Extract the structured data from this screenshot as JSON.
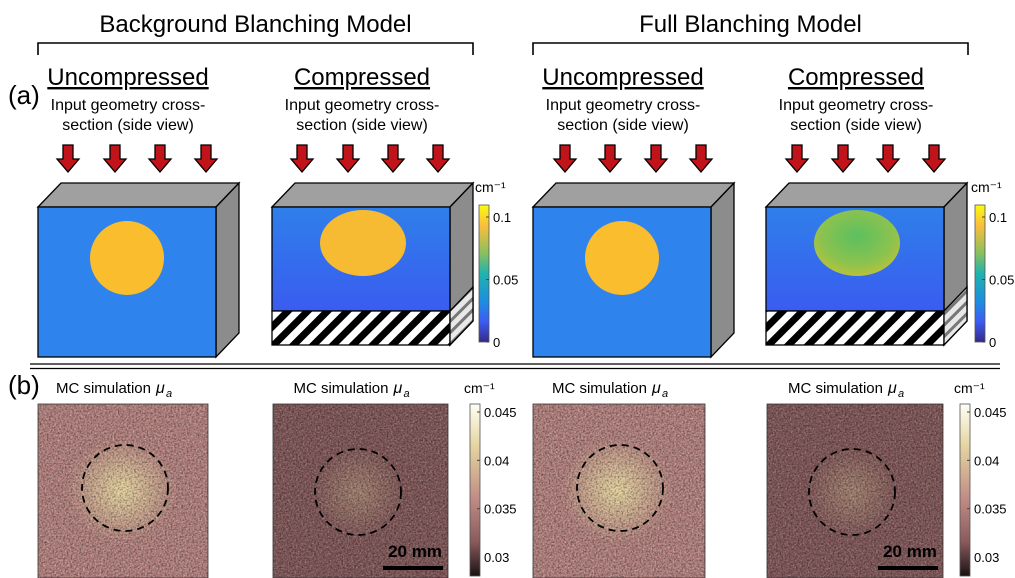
{
  "groups": [
    {
      "title": "Background Blanching Model"
    },
    {
      "title": "Full Blanching Model"
    }
  ],
  "section_labels": [
    "(a)",
    "(b)"
  ],
  "geometry_panels": [
    {
      "heading": "Uncompressed",
      "caption": [
        "Input geometry cross-",
        "section (side view)"
      ]
    },
    {
      "heading": "Compressed",
      "caption": [
        "Input geometry cross-",
        "section (side view)"
      ]
    },
    {
      "heading": "Uncompressed",
      "caption": [
        "Input geometry cross-",
        "section (side view)"
      ]
    },
    {
      "heading": "Compressed",
      "caption": [
        "Input geometry cross-",
        "section (side view)"
      ]
    }
  ],
  "geometry_colorbars": [
    {
      "unit": "cm⁻¹",
      "ticks": [
        "0.1",
        "0.05",
        "0"
      ]
    },
    {
      "unit": "cm⁻¹",
      "ticks": [
        "0.1",
        "0.05",
        "0"
      ]
    }
  ],
  "simulation_panels": [
    {
      "title": "MC simulation",
      "symbol": "μ",
      "subscript": "a"
    },
    {
      "title": "MC simulation",
      "symbol": "μ",
      "subscript": "a",
      "scale_bar": "20 mm"
    },
    {
      "title": "MC simulation",
      "symbol": "μ",
      "subscript": "a"
    },
    {
      "title": "MC simulation",
      "symbol": "μ",
      "subscript": "a",
      "scale_bar": "20 mm"
    }
  ],
  "simulation_colorbars": [
    {
      "unit": "cm⁻¹",
      "ticks": [
        "0.045",
        "0.04",
        "0.035",
        "0.03"
      ]
    },
    {
      "unit": "cm⁻¹",
      "ticks": [
        "0.045",
        "0.04",
        "0.035",
        "0.03"
      ]
    }
  ]
}
